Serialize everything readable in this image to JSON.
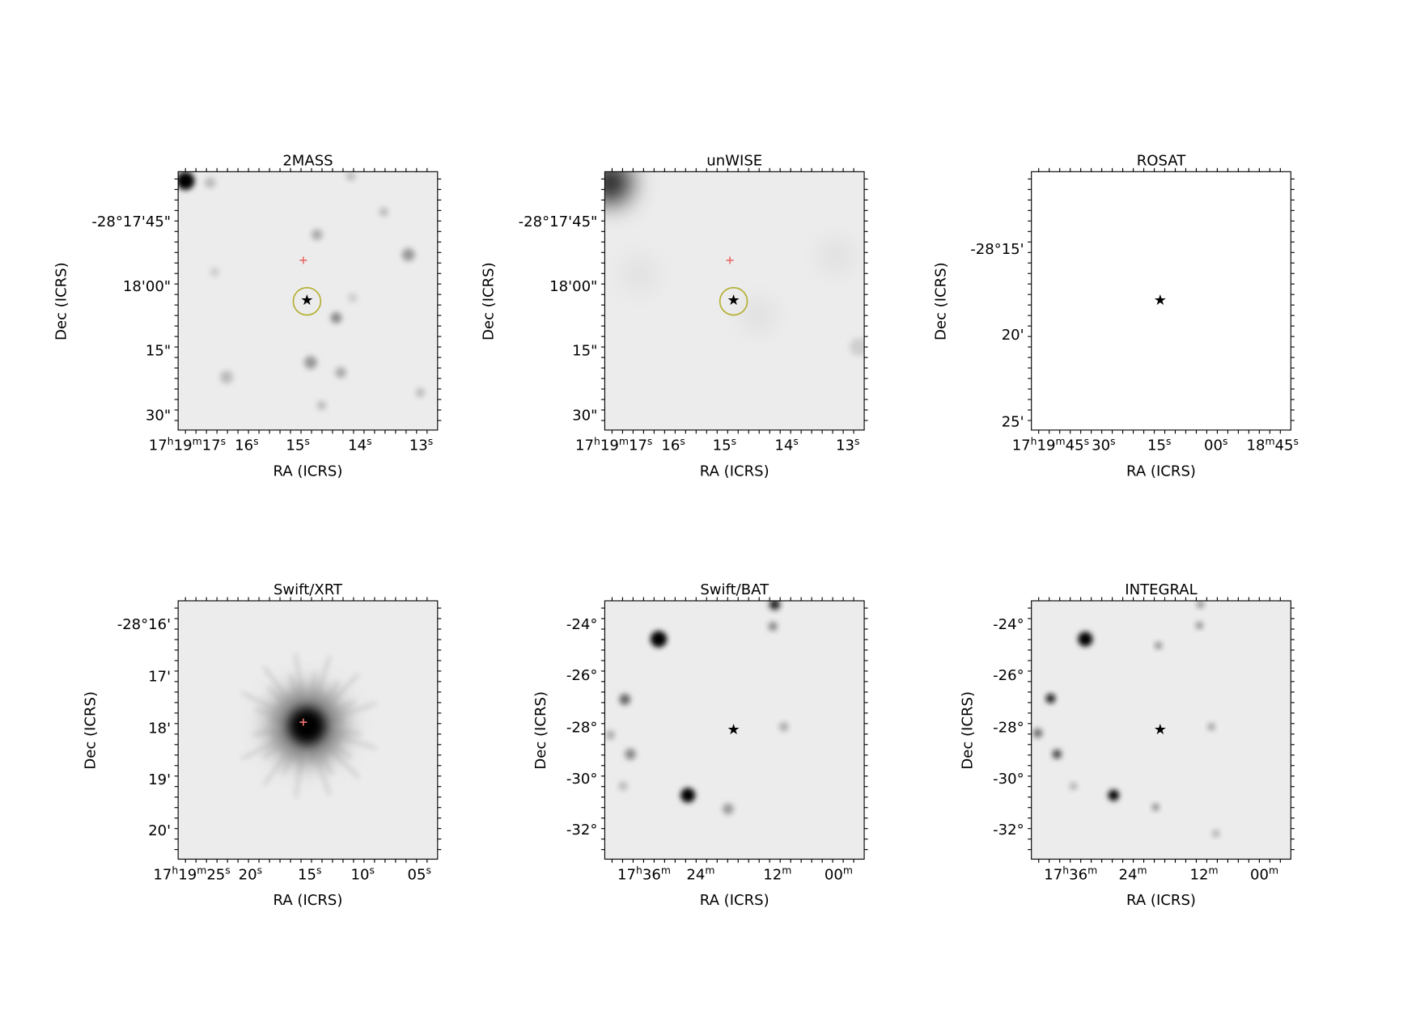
{
  "panels": [
    {
      "title": "2MASS",
      "x_label": "RA (ICRS)",
      "y_label": "Dec (ICRS)",
      "x_ticks": [
        "17h19m17s",
        "16s",
        "15s",
        "14s",
        "13s"
      ],
      "y_ticks": [
        "-28°17'45\"",
        "18'00\"",
        "15\"",
        "30\""
      ]
    },
    {
      "title": "unWISE",
      "x_label": "RA (ICRS)",
      "y_label": "Dec (ICRS)",
      "x_ticks": [
        "17h19m17s",
        "16s",
        "15s",
        "14s",
        "13s"
      ],
      "y_ticks": [
        "-28°17'45\"",
        "18'00\"",
        "15\"",
        "30\""
      ]
    },
    {
      "title": "ROSAT",
      "x_label": "RA (ICRS)",
      "y_label": "Dec (ICRS)",
      "x_ticks": [
        "17h19m45s",
        "30s",
        "15s",
        "00s",
        "18m45s"
      ],
      "y_ticks": [
        "-28°15'",
        "20'",
        "25'"
      ]
    },
    {
      "title": "Swift/XRT",
      "x_label": "RA (ICRS)",
      "y_label": "Dec (ICRS)",
      "x_ticks": [
        "17h19m25s",
        "20s",
        "15s",
        "10s",
        "05s"
      ],
      "y_ticks": [
        "-28°16'",
        "17'",
        "18'",
        "19'",
        "20'"
      ]
    },
    {
      "title": "Swift/BAT",
      "x_label": "RA (ICRS)",
      "y_label": "Dec (ICRS)",
      "x_ticks": [
        "17h36m",
        "24m",
        "12m",
        "00m"
      ],
      "y_ticks": [
        "-24°",
        "-26°",
        "-28°",
        "-30°",
        "-32°"
      ]
    },
    {
      "title": "INTEGRAL",
      "x_label": "RA (ICRS)",
      "y_label": "Dec (ICRS)",
      "x_ticks": [
        "17h36m",
        "24m",
        "12m",
        "00m"
      ],
      "y_ticks": [
        "-24°",
        "-26°",
        "-28°",
        "-30°",
        "-32°"
      ]
    }
  ]
}
